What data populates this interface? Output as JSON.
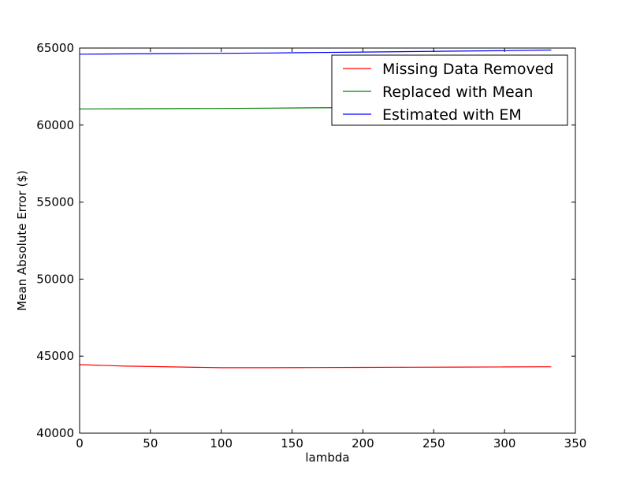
{
  "chart_data": {
    "type": "line",
    "title": "",
    "xlabel": "lambda",
    "ylabel": "Mean Absolute Error ($)",
    "xlim": [
      0,
      350
    ],
    "ylim": [
      40000,
      65000
    ],
    "xticks": [
      0,
      50,
      100,
      150,
      200,
      250,
      300,
      350
    ],
    "yticks": [
      40000,
      45000,
      50000,
      55000,
      60000,
      65000
    ],
    "xtick_labels": [
      "0",
      "50",
      "100",
      "150",
      "200",
      "250",
      "300",
      "350"
    ],
    "ytick_labels": [
      "40000",
      "45000",
      "50000",
      "55000",
      "60000",
      "65000"
    ],
    "grid": false,
    "legend_position": "top-right",
    "series": [
      {
        "name": "Missing Data Removed",
        "color": "#ff0000",
        "x": [
          0,
          33,
          67,
          100,
          133,
          167,
          200,
          233,
          267,
          300,
          333
        ],
        "y": [
          44450,
          44350,
          44300,
          44250,
          44250,
          44260,
          44270,
          44280,
          44290,
          44300,
          44310
        ]
      },
      {
        "name": "Replaced with Mean",
        "color": "#008000",
        "x": [
          0,
          33,
          67,
          100,
          133,
          167,
          200,
          233,
          267,
          300,
          333
        ],
        "y": [
          61050,
          61060,
          61070,
          61080,
          61100,
          61120,
          61140,
          61160,
          61180,
          61200,
          61220
        ]
      },
      {
        "name": "Estimated with EM",
        "color": "#0000ff",
        "x": [
          0,
          33,
          67,
          100,
          133,
          167,
          200,
          233,
          267,
          300,
          333
        ],
        "y": [
          64600,
          64620,
          64640,
          64660,
          64680,
          64710,
          64740,
          64770,
          64800,
          64830,
          64870
        ]
      }
    ]
  }
}
